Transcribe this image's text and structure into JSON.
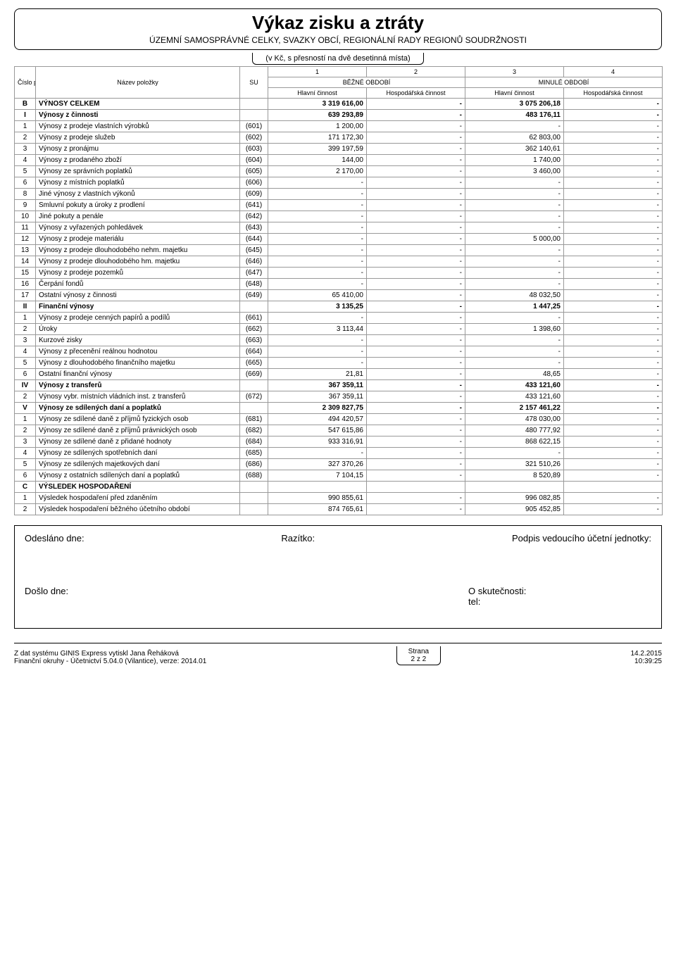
{
  "title": "Výkaz zisku a ztráty",
  "subtitle": "ÚZEMNÍ SAMOSPRÁVNÉ CELKY, SVAZKY OBCÍ, REGIONÁLNÍ RADY REGIONŮ SOUDRŽNOSTI",
  "precision": "(v Kč, s přesností na dvě desetinná místa)",
  "header": {
    "col_num": "Číslo pol.",
    "col_name": "Název položky",
    "col_su": "SU",
    "num_1": "1",
    "num_2": "2",
    "num_3": "3",
    "num_4": "4",
    "period_current": "BĚŽNÉ OBDOBÍ",
    "period_prev": "MINULÉ OBDOBÍ",
    "main_act": "Hlavní činnost",
    "econ_act": "Hospodářská činnost"
  },
  "rows": [
    {
      "n": "B",
      "name": "VÝNOSY CELKEM",
      "su": "",
      "v1": "3 319 616,00",
      "v2": "-",
      "v3": "3 075 206,18",
      "v4": "-",
      "section": true
    },
    {
      "n": "I",
      "name": "Výnosy z činnosti",
      "su": "",
      "v1": "639 293,89",
      "v2": "-",
      "v3": "483 176,11",
      "v4": "-",
      "section": true
    },
    {
      "n": "1",
      "name": "Výnosy z prodeje vlastních výrobků",
      "su": "(601)",
      "v1": "1 200,00",
      "v2": "-",
      "v3": "-",
      "v4": "-"
    },
    {
      "n": "2",
      "name": "Výnosy z prodeje služeb",
      "su": "(602)",
      "v1": "171 172,30",
      "v2": "-",
      "v3": "62 803,00",
      "v4": "-"
    },
    {
      "n": "3",
      "name": "Výnosy z pronájmu",
      "su": "(603)",
      "v1": "399 197,59",
      "v2": "-",
      "v3": "362 140,61",
      "v4": "-"
    },
    {
      "n": "4",
      "name": "Výnosy z prodaného zboží",
      "su": "(604)",
      "v1": "144,00",
      "v2": "-",
      "v3": "1 740,00",
      "v4": "-"
    },
    {
      "n": "5",
      "name": "Výnosy ze správních poplatků",
      "su": "(605)",
      "v1": "2 170,00",
      "v2": "-",
      "v3": "3 460,00",
      "v4": "-"
    },
    {
      "n": "6",
      "name": "Výnosy z místních poplatků",
      "su": "(606)",
      "v1": "-",
      "v2": "-",
      "v3": "-",
      "v4": "-"
    },
    {
      "n": "8",
      "name": "Jiné výnosy z vlastních výkonů",
      "su": "(609)",
      "v1": "-",
      "v2": "-",
      "v3": "-",
      "v4": "-"
    },
    {
      "n": "9",
      "name": "Smluvní pokuty a úroky z prodlení",
      "su": "(641)",
      "v1": "-",
      "v2": "-",
      "v3": "-",
      "v4": "-"
    },
    {
      "n": "10",
      "name": "Jiné pokuty a penále",
      "su": "(642)",
      "v1": "-",
      "v2": "-",
      "v3": "-",
      "v4": "-"
    },
    {
      "n": "11",
      "name": "Výnosy z vyřazených pohledávek",
      "su": "(643)",
      "v1": "-",
      "v2": "-",
      "v3": "-",
      "v4": "-"
    },
    {
      "n": "12",
      "name": "Výnosy z prodeje materiálu",
      "su": "(644)",
      "v1": "-",
      "v2": "-",
      "v3": "5 000,00",
      "v4": "-"
    },
    {
      "n": "13",
      "name": "Výnosy z prodeje dlouhodobého nehm. majetku",
      "su": "(645)",
      "v1": "-",
      "v2": "-",
      "v3": "-",
      "v4": "-"
    },
    {
      "n": "14",
      "name": "Výnosy z prodeje dlouhodobého hm. majetku",
      "su": "(646)",
      "v1": "-",
      "v2": "-",
      "v3": "-",
      "v4": "-"
    },
    {
      "n": "15",
      "name": "Výnosy z prodeje pozemků",
      "su": "(647)",
      "v1": "-",
      "v2": "-",
      "v3": "-",
      "v4": "-"
    },
    {
      "n": "16",
      "name": "Čerpání fondů",
      "su": "(648)",
      "v1": "-",
      "v2": "-",
      "v3": "-",
      "v4": "-"
    },
    {
      "n": "17",
      "name": "Ostatní výnosy z činnosti",
      "su": "(649)",
      "v1": "65 410,00",
      "v2": "-",
      "v3": "48 032,50",
      "v4": "-"
    },
    {
      "n": "II",
      "name": "Finanční výnosy",
      "su": "",
      "v1": "3 135,25",
      "v2": "-",
      "v3": "1 447,25",
      "v4": "-",
      "section": true
    },
    {
      "n": "1",
      "name": "Výnosy z prodeje cenných papírů a podílů",
      "su": "(661)",
      "v1": "-",
      "v2": "-",
      "v3": "-",
      "v4": "-"
    },
    {
      "n": "2",
      "name": "Úroky",
      "su": "(662)",
      "v1": "3 113,44",
      "v2": "-",
      "v3": "1 398,60",
      "v4": "-"
    },
    {
      "n": "3",
      "name": "Kurzové zisky",
      "su": "(663)",
      "v1": "-",
      "v2": "-",
      "v3": "-",
      "v4": "-"
    },
    {
      "n": "4",
      "name": "Výnosy z přecenění reálnou hodnotou",
      "su": "(664)",
      "v1": "-",
      "v2": "-",
      "v3": "-",
      "v4": "-"
    },
    {
      "n": "5",
      "name": "Výnosy z dlouhodobého finančního majetku",
      "su": "(665)",
      "v1": "-",
      "v2": "-",
      "v3": "-",
      "v4": "-"
    },
    {
      "n": "6",
      "name": "Ostatní finanční výnosy",
      "su": "(669)",
      "v1": "21,81",
      "v2": "-",
      "v3": "48,65",
      "v4": "-"
    },
    {
      "n": "IV",
      "name": "Výnosy z transferů",
      "su": "",
      "v1": "367 359,11",
      "v2": "-",
      "v3": "433 121,60",
      "v4": "-",
      "section": true
    },
    {
      "n": "2",
      "name": "Výnosy vybr. místních vládních inst. z transferů",
      "su": "(672)",
      "v1": "367 359,11",
      "v2": "-",
      "v3": "433 121,60",
      "v4": "-"
    },
    {
      "n": "V",
      "name": "Výnosy ze sdílených daní a poplatků",
      "su": "",
      "v1": "2 309 827,75",
      "v2": "-",
      "v3": "2 157 461,22",
      "v4": "-",
      "section": true
    },
    {
      "n": "1",
      "name": "Výnosy ze sdílené daně z příjmů fyzických osob",
      "su": "(681)",
      "v1": "494 420,57",
      "v2": "-",
      "v3": "478 030,00",
      "v4": "-"
    },
    {
      "n": "2",
      "name": "Výnosy ze sdílené daně z příjmů právnických osob",
      "su": "(682)",
      "v1": "547 615,86",
      "v2": "-",
      "v3": "480 777,92",
      "v4": "-"
    },
    {
      "n": "3",
      "name": "Výnosy ze sdílené daně z přidané hodnoty",
      "su": "(684)",
      "v1": "933 316,91",
      "v2": "-",
      "v3": "868 622,15",
      "v4": "-"
    },
    {
      "n": "4",
      "name": "Výnosy ze sdílených spotřebních daní",
      "su": "(685)",
      "v1": "-",
      "v2": "-",
      "v3": "-",
      "v4": "-"
    },
    {
      "n": "5",
      "name": "Výnosy ze sdílených majetkových daní",
      "su": "(686)",
      "v1": "327 370,26",
      "v2": "-",
      "v3": "321 510,26",
      "v4": "-"
    },
    {
      "n": "6",
      "name": "Výnosy z ostatních sdílených daní a poplatků",
      "su": "(688)",
      "v1": "7 104,15",
      "v2": "-",
      "v3": "8 520,89",
      "v4": "-"
    },
    {
      "n": "C",
      "name": "VÝSLEDEK HOSPODAŘENÍ",
      "su": "",
      "v1": "",
      "v2": "",
      "v3": "",
      "v4": "",
      "section": true
    },
    {
      "n": "1",
      "name": "Výsledek hospodaření před zdaněním",
      "su": "",
      "v1": "990 855,61",
      "v2": "-",
      "v3": "996 082,85",
      "v4": "-"
    },
    {
      "n": "2",
      "name": "Výsledek hospodaření běžného účetního období",
      "su": "",
      "v1": "874 765,61",
      "v2": "-",
      "v3": "905 452,85",
      "v4": "-"
    }
  ],
  "sig": {
    "sent": "Odesláno dne:",
    "stamp": "Razítko:",
    "signature": "Podpis vedoucího účetní jednotky:",
    "received": "Došlo dne:",
    "fact": "O skutečnosti:",
    "tel": "tel:"
  },
  "footer": {
    "left1": "Z dat systému GINIS Express vytiskl Jana Řeháková",
    "left2": "Finanční okruhy - Účetnictví 5.04.0 (Vilantice), verze: 2014.01",
    "center1": "Strana",
    "center2": "2 z 2",
    "right1": "14.2.2015",
    "right2": "10:39:25"
  }
}
